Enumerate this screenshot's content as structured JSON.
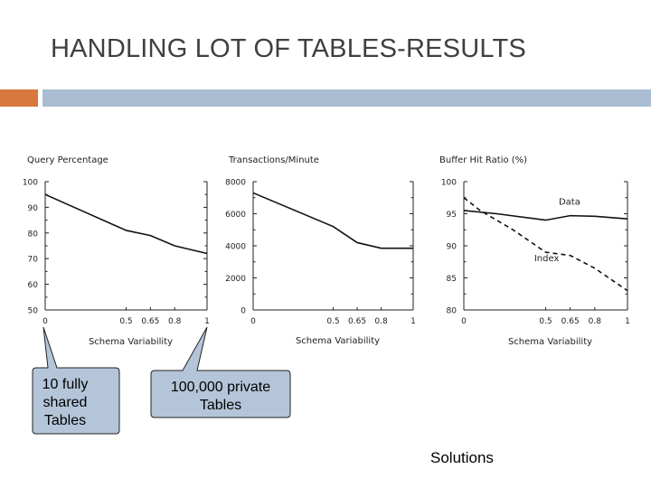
{
  "slide": {
    "title": "HANDLING LOT OF TABLES-RESULTS",
    "callout_left": [
      "10 fully",
      "shared",
      "Tables"
    ],
    "callout_right": [
      "100,000 private",
      "Tables"
    ],
    "solutions_label": "Solutions",
    "accent_colors": {
      "orange": "#d9783e",
      "blue": "#a9bcd1",
      "callout": "#b4c5d9"
    }
  },
  "chart_data": [
    {
      "type": "line",
      "title": "Query Percentage",
      "xlabel": "Schema Variability",
      "xlim": [
        0,
        1
      ],
      "ylim": [
        50,
        100
      ],
      "xticks": [
        0,
        0.5,
        0.65,
        0.8,
        1
      ],
      "xtick_labels": [
        "0",
        "0.5",
        "0.65",
        "0.8",
        "1"
      ],
      "yticks": [
        50,
        60,
        70,
        80,
        90,
        100
      ],
      "ytick_labels": [
        "50",
        "60",
        "70",
        "80",
        "90",
        "100"
      ],
      "series": [
        {
          "x": [
            0,
            0.5,
            0.65,
            0.8,
            1
          ],
          "y": [
            95,
            81,
            79,
            75,
            72
          ],
          "style": "solid"
        }
      ]
    },
    {
      "type": "line",
      "title": "Transactions/Minute",
      "xlabel": "Schema Variability",
      "xlim": [
        0,
        1
      ],
      "ylim": [
        0,
        8000
      ],
      "xticks": [
        0,
        0.5,
        0.65,
        0.8,
        1
      ],
      "xtick_labels": [
        "0",
        "0.5",
        "0.65",
        "0.8",
        "1"
      ],
      "yticks": [
        0,
        2000,
        4000,
        6000,
        8000
      ],
      "ytick_labels": [
        "0",
        "2000",
        "4000",
        "6000",
        "8000"
      ],
      "series": [
        {
          "x": [
            0,
            0.5,
            0.65,
            0.8,
            1
          ],
          "y": [
            7300,
            5200,
            4200,
            3850,
            3850
          ],
          "style": "solid"
        }
      ]
    },
    {
      "type": "line",
      "title": "Buffer Hit Ratio (%)",
      "xlabel": "Schema Variability",
      "xlim": [
        0,
        1
      ],
      "ylim": [
        80,
        100
      ],
      "xticks": [
        0,
        0.5,
        0.65,
        0.8,
        1
      ],
      "xtick_labels": [
        "0",
        "0.5",
        "0.65",
        "0.8",
        "1"
      ],
      "yticks": [
        80,
        85,
        90,
        95,
        100
      ],
      "ytick_labels": [
        "80",
        "85",
        "90",
        "95",
        "100"
      ],
      "series": [
        {
          "name": "Data",
          "x": [
            0,
            0.2,
            0.5,
            0.65,
            0.8,
            1
          ],
          "y": [
            95.5,
            95,
            94,
            94.7,
            94.6,
            94.2
          ],
          "style": "solid"
        },
        {
          "name": "Index",
          "x": [
            0,
            0.1,
            0.3,
            0.5,
            0.65,
            0.8,
            1
          ],
          "y": [
            97.5,
            95.5,
            92.5,
            89,
            88.5,
            86.5,
            83
          ],
          "style": "dashed"
        }
      ]
    }
  ]
}
